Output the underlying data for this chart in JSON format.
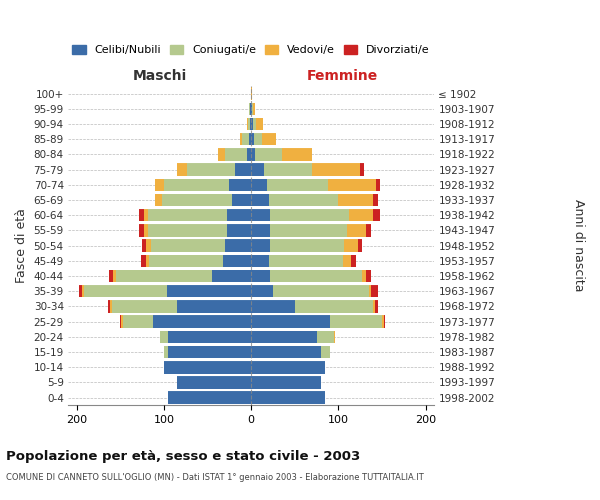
{
  "age_groups": [
    "0-4",
    "5-9",
    "10-14",
    "15-19",
    "20-24",
    "25-29",
    "30-34",
    "35-39",
    "40-44",
    "45-49",
    "50-54",
    "55-59",
    "60-64",
    "65-69",
    "70-74",
    "75-79",
    "80-84",
    "85-89",
    "90-94",
    "95-99",
    "100+"
  ],
  "birth_years": [
    "1998-2002",
    "1993-1997",
    "1988-1992",
    "1983-1987",
    "1978-1982",
    "1973-1977",
    "1968-1972",
    "1963-1967",
    "1958-1962",
    "1953-1957",
    "1948-1952",
    "1943-1947",
    "1938-1942",
    "1933-1937",
    "1928-1932",
    "1923-1927",
    "1918-1922",
    "1913-1917",
    "1908-1912",
    "1903-1907",
    "≤ 1902"
  ],
  "males": {
    "celibi": [
      95,
      85,
      100,
      95,
      95,
      112,
      85,
      97,
      45,
      32,
      30,
      28,
      28,
      22,
      25,
      18,
      5,
      2,
      1,
      1,
      0
    ],
    "coniugati": [
      0,
      0,
      0,
      5,
      10,
      35,
      75,
      95,
      110,
      85,
      85,
      90,
      90,
      80,
      75,
      55,
      25,
      8,
      3,
      1,
      0
    ],
    "vedovi": [
      0,
      0,
      0,
      0,
      0,
      2,
      2,
      2,
      3,
      3,
      5,
      5,
      5,
      8,
      10,
      12,
      8,
      3,
      1,
      0,
      0
    ],
    "divorziati": [
      0,
      0,
      0,
      0,
      0,
      1,
      2,
      3,
      5,
      6,
      5,
      5,
      5,
      0,
      0,
      0,
      0,
      0,
      0,
      0,
      0
    ]
  },
  "females": {
    "nubili": [
      85,
      80,
      85,
      80,
      75,
      90,
      50,
      25,
      22,
      20,
      22,
      22,
      22,
      20,
      18,
      15,
      5,
      3,
      2,
      1,
      0
    ],
    "coniugate": [
      0,
      0,
      0,
      10,
      20,
      60,
      90,
      110,
      105,
      85,
      85,
      88,
      90,
      80,
      70,
      55,
      30,
      10,
      4,
      1,
      0
    ],
    "vedove": [
      0,
      0,
      0,
      0,
      1,
      2,
      2,
      3,
      5,
      10,
      15,
      22,
      28,
      40,
      55,
      55,
      35,
      15,
      8,
      2,
      1
    ],
    "divorziate": [
      0,
      0,
      0,
      0,
      0,
      2,
      3,
      8,
      5,
      5,
      5,
      5,
      8,
      5,
      5,
      5,
      0,
      0,
      0,
      0,
      0
    ]
  },
  "colors": {
    "celibi": "#3b6ca8",
    "coniugati": "#b5c98e",
    "vedovi": "#f0b040",
    "divorziati": "#cc2222"
  },
  "xlim": 210,
  "title": "Popolazione per età, sesso e stato civile - 2003",
  "subtitle": "COMUNE DI CANNETO SULL'OGLIO (MN) - Dati ISTAT 1° gennaio 2003 - Elaborazione TUTTAITALIA.IT",
  "ylabel": "Fasce di età",
  "ylabel2": "Anni di nascita",
  "legend_labels": [
    "Celibi/Nubili",
    "Coniugati/e",
    "Vedovi/e",
    "Divorziati/e"
  ],
  "bg_color": "#ffffff",
  "grid_color": "#bbbbbb"
}
